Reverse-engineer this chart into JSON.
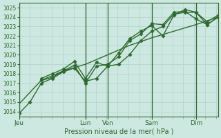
{
  "xlabel": "Pression niveau de la mer( hPa )",
  "bg_color": "#cde8e1",
  "grid_color": "#b8d8d0",
  "line_color": "#2d6b2d",
  "vline_color": "#2d6b2d",
  "ylim": [
    1013.5,
    1025.5
  ],
  "yticks": [
    1014,
    1015,
    1016,
    1017,
    1018,
    1019,
    1020,
    1021,
    1022,
    1023,
    1024,
    1025
  ],
  "xlim": [
    0,
    8.0
  ],
  "day_labels": [
    "Jeu",
    "Lun",
    "Ven",
    "Sam",
    "Dim"
  ],
  "day_positions": [
    0.0,
    2.67,
    3.56,
    5.33,
    7.11
  ],
  "vline_positions": [
    0.0,
    2.67,
    3.56,
    5.33,
    7.11
  ],
  "series": [
    {
      "x": [
        0.0,
        0.44,
        0.89,
        1.33,
        1.78,
        2.22,
        2.67,
        3.11,
        3.56,
        4.0,
        4.44,
        4.89,
        5.33,
        5.78,
        6.22,
        6.67,
        7.11,
        7.56,
        8.0
      ],
      "y": [
        1013.8,
        1015.0,
        1017.0,
        1017.5,
        1018.2,
        1018.6,
        1017.2,
        1017.5,
        1018.8,
        1019.0,
        1020.0,
        1021.5,
        1022.5,
        1023.0,
        1024.3,
        1024.5,
        1024.5,
        1023.2,
        1024.0
      ],
      "marker": "D",
      "markersize": 2.5,
      "linewidth": 1.0
    },
    {
      "x": [
        0.89,
        1.33,
        1.78,
        2.22,
        2.67,
        3.11,
        3.56,
        4.0,
        4.44,
        4.89,
        5.33,
        5.78,
        6.22,
        6.67,
        7.11,
        7.56,
        8.0
      ],
      "y": [
        1017.3,
        1017.6,
        1018.3,
        1018.9,
        1017.0,
        1018.8,
        1019.0,
        1019.8,
        1021.5,
        1022.2,
        1023.3,
        1023.2,
        1024.5,
        1024.6,
        1023.8,
        1023.2,
        1024.0
      ],
      "marker": "D",
      "markersize": 2.5,
      "linewidth": 1.0
    },
    {
      "x": [
        0.89,
        1.33,
        1.78,
        2.22,
        2.67,
        3.11,
        3.56,
        4.0,
        4.44,
        4.89,
        5.33,
        5.78,
        6.22,
        6.67,
        7.11,
        7.56,
        8.0
      ],
      "y": [
        1017.5,
        1018.0,
        1018.5,
        1019.3,
        1017.5,
        1019.2,
        1018.8,
        1020.2,
        1021.7,
        1022.5,
        1023.1,
        1022.0,
        1024.2,
        1024.8,
        1024.5,
        1023.5,
        1024.2
      ],
      "marker": "D",
      "markersize": 2.5,
      "linewidth": 1.0
    },
    {
      "x": [
        0.0,
        0.89,
        1.78,
        2.67,
        3.56,
        4.44,
        5.33,
        6.22,
        7.11,
        8.0
      ],
      "y": [
        1014.8,
        1017.3,
        1018.3,
        1019.0,
        1020.0,
        1021.0,
        1021.8,
        1022.5,
        1023.2,
        1024.0
      ],
      "marker": null,
      "markersize": 0,
      "linewidth": 1.0
    }
  ],
  "minor_tick_color": "#c09090",
  "tick_color_x": "#2d6b2d",
  "xlabel_fontsize": 7,
  "ytick_fontsize": 5.5,
  "xtick_fontsize": 6.5
}
